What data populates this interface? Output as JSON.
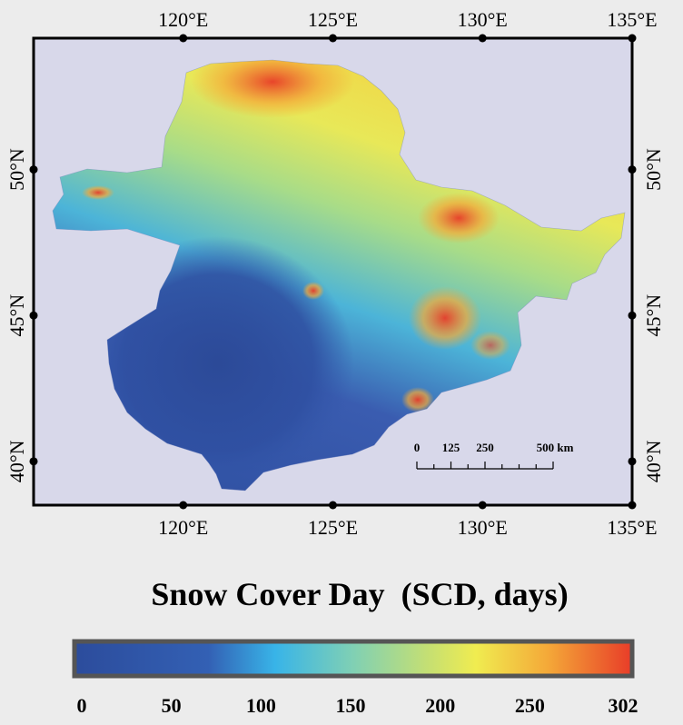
{
  "map": {
    "lon_labels": [
      "120°E",
      "125°E",
      "130°E",
      "135°E"
    ],
    "lat_labels": [
      "50°N",
      "45°N",
      "40°N"
    ],
    "frame_lon_range": [
      115,
      135
    ],
    "frame_lat_range": [
      38.5,
      54.5
    ],
    "background_color": "#d8d8ea"
  },
  "scale_bar": {
    "labels": [
      "0",
      "125",
      "250",
      "500 km"
    ],
    "distances_km": [
      0,
      125,
      250,
      500
    ]
  },
  "legend": {
    "title": "Snow Cover Day  (SCD, days)",
    "min": 0,
    "max": 302,
    "tick_labels": [
      "0",
      "50",
      "100",
      "150",
      "200",
      "250",
      "302"
    ],
    "tick_values": [
      0,
      50,
      100,
      150,
      200,
      250,
      302
    ],
    "colors": [
      "#2c4c9c",
      "#3360b4",
      "#38b4e8",
      "#80d0b4",
      "#c8e070",
      "#f0ec50",
      "#f4a838",
      "#e83c28"
    ]
  }
}
